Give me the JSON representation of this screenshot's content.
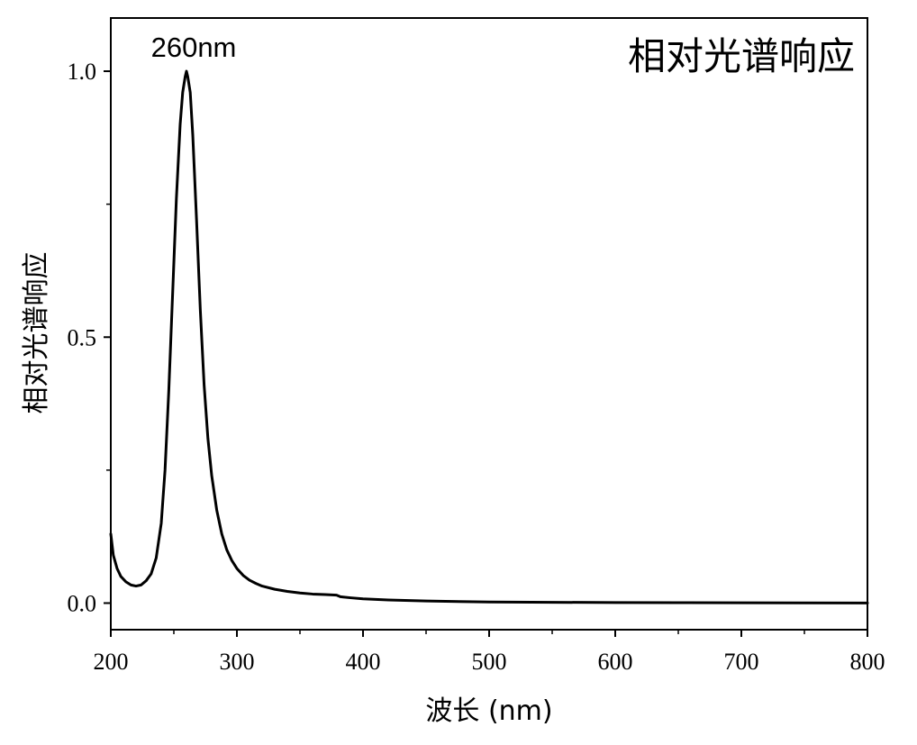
{
  "chart_data": {
    "type": "line",
    "title": "相对光谱响应",
    "xlabel": "波长 (nm)",
    "ylabel": "相对光谱响应",
    "xlim": [
      200,
      800
    ],
    "ylim": [
      -0.05,
      1.1
    ],
    "x_ticks": [
      200,
      300,
      400,
      500,
      600,
      700,
      800
    ],
    "x_tick_labels": [
      "200",
      "300",
      "400",
      "500",
      "600",
      "700",
      "800"
    ],
    "y_ticks": [
      0.0,
      0.5,
      1.0
    ],
    "y_tick_labels": [
      "0.0",
      "0.5",
      "1.0"
    ],
    "grid": false,
    "legend": "none",
    "annotations": [
      {
        "text": "260nm",
        "x": 260,
        "y": 1.0
      }
    ],
    "series": [
      {
        "color": "#000000",
        "x": [
          200,
          202,
          205,
          208,
          212,
          216,
          220,
          224,
          228,
          232,
          236,
          240,
          243,
          246,
          249,
          252,
          255,
          257,
          259,
          260,
          261,
          263,
          265,
          268,
          271,
          274,
          277,
          280,
          284,
          288,
          292,
          296,
          300,
          305,
          310,
          315,
          320,
          330,
          340,
          350,
          360,
          370,
          379,
          382,
          390,
          400,
          420,
          450,
          500,
          550,
          600,
          650,
          700,
          750,
          800
        ],
        "y": [
          0.13,
          0.09,
          0.065,
          0.05,
          0.04,
          0.034,
          0.032,
          0.034,
          0.042,
          0.055,
          0.085,
          0.15,
          0.25,
          0.4,
          0.58,
          0.76,
          0.9,
          0.96,
          0.99,
          1.0,
          0.99,
          0.96,
          0.88,
          0.72,
          0.55,
          0.41,
          0.31,
          0.24,
          0.175,
          0.13,
          0.1,
          0.08,
          0.065,
          0.052,
          0.043,
          0.037,
          0.032,
          0.026,
          0.022,
          0.019,
          0.017,
          0.016,
          0.015,
          0.012,
          0.01,
          0.008,
          0.006,
          0.004,
          0.002,
          0.0015,
          0.001,
          0.0008,
          0.0005,
          0.0003,
          0.0002
        ]
      }
    ]
  }
}
